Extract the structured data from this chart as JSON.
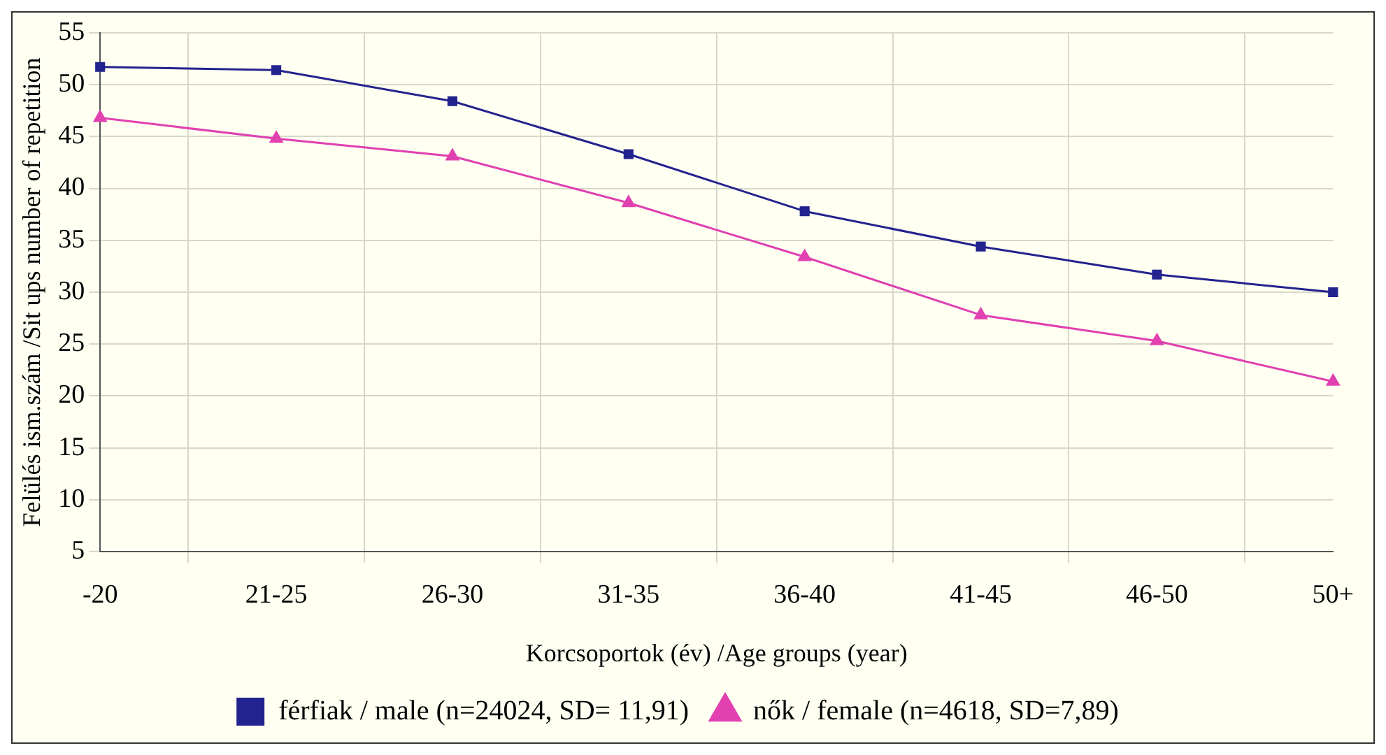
{
  "chart_data": {
    "type": "line",
    "xlabel": "Korcsoportok (év) /Age groups (year)",
    "ylabel": "Felülés ism.szám /Sit ups number of repetition",
    "categories": [
      "-20",
      "21-25",
      "26-30",
      "31-35",
      "36-40",
      "41-45",
      "46-50",
      "50+"
    ],
    "series": [
      {
        "name": "férfiak / male (n=24024, SD= 11,91)",
        "color": "#23238f",
        "marker": "square",
        "values": [
          51.7,
          51.4,
          48.4,
          43.3,
          37.8,
          34.4,
          31.7,
          30.0
        ]
      },
      {
        "name": "nők / female (n=4618, SD=7,89)",
        "color": "#e040b0",
        "marker": "triangle",
        "values": [
          46.8,
          44.8,
          43.1,
          38.6,
          33.4,
          27.8,
          25.3,
          21.4
        ]
      }
    ],
    "ylim": [
      5,
      55
    ],
    "yticks": [
      5,
      10,
      15,
      20,
      25,
      30,
      35,
      40,
      45,
      50,
      55
    ],
    "grid": true,
    "legend": "bottom",
    "line_style": "solid"
  }
}
